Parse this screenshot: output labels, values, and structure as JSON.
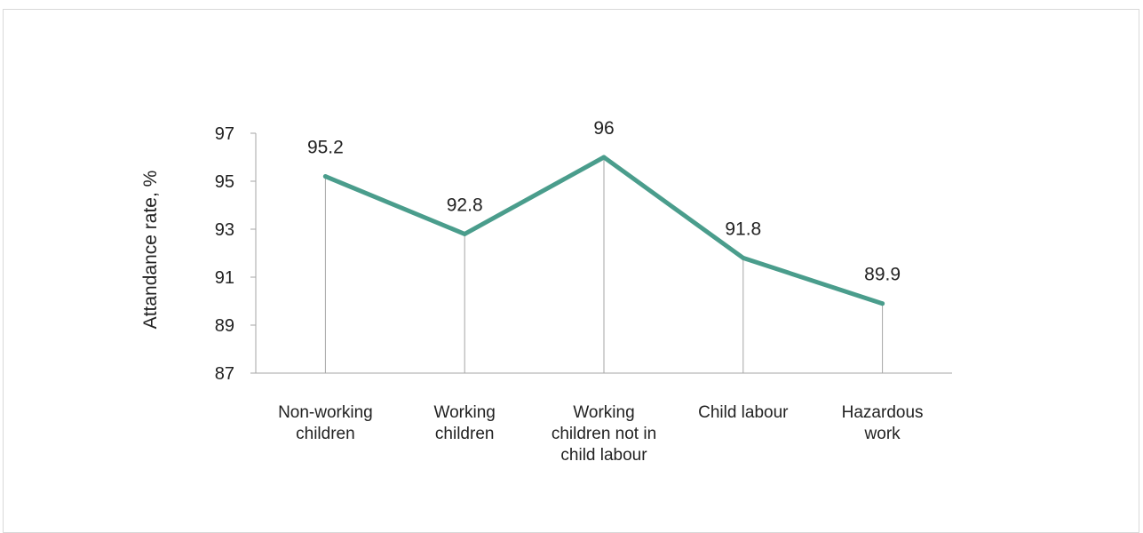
{
  "chart_data": {
    "type": "line",
    "title": "",
    "xlabel": "",
    "ylabel": "Attandance rate, %",
    "ylim": [
      87,
      97
    ],
    "yticks": [
      87,
      89,
      91,
      93,
      95,
      97
    ],
    "categories": [
      [
        "Non-working",
        "children"
      ],
      [
        "Working",
        "children"
      ],
      [
        "Working",
        "children not in",
        "child labour"
      ],
      [
        "Child labour"
      ],
      [
        "Hazardous",
        "work"
      ]
    ],
    "series": [
      {
        "values": [
          95.2,
          92.8,
          96,
          91.8,
          89.9
        ],
        "labels": [
          "95.2",
          "92.8",
          "96",
          "91.8",
          "89.9"
        ],
        "color": "#4a9d8c"
      }
    ],
    "grid": false,
    "drop_lines": true,
    "drop_line_color": "#a6a6a6",
    "axis_color": "#a6a6a6"
  }
}
